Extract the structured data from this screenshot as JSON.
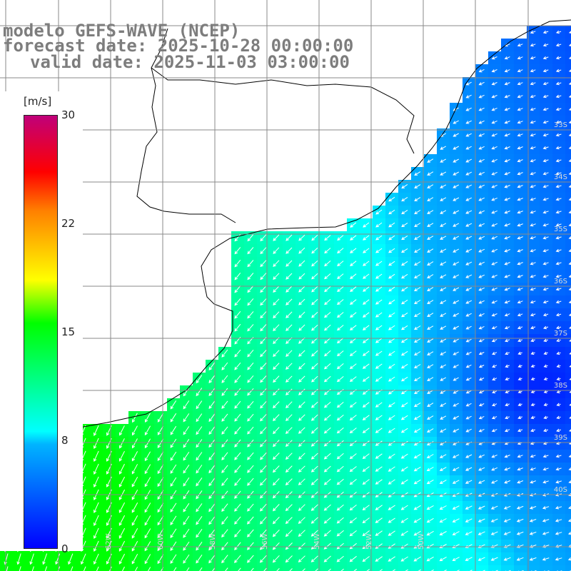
{
  "header": {
    "line1": "modelo GEFS-WAVE (NCEP)",
    "line2": "forecast date: 2025-10-28 00:00:00",
    "line3": "valid date: 2025-11-03 03:00:00"
  },
  "colorbar": {
    "unit": "[m/s]",
    "ticks": [
      "30",
      "22",
      "15",
      "8",
      "0"
    ],
    "tick_values": [
      30,
      22,
      15,
      8,
      0
    ],
    "range": [
      0,
      30
    ],
    "colors": [
      "#0000ff",
      "#00b4ff",
      "#00ffff",
      "#00ff00",
      "#ffff00",
      "#ff8000",
      "#ff0000",
      "#c0007a"
    ]
  },
  "map": {
    "lat_labels": [
      "33S",
      "34S",
      "35S",
      "36S",
      "37S",
      "38S",
      "39S",
      "40S"
    ],
    "lon_labels": [
      "62W",
      "60W",
      "58W",
      "56W",
      "54W",
      "52W",
      "50W"
    ],
    "field": "10 m wind speed with direction arrows",
    "land_color": "#ffffff",
    "grid_color": "#8a8a8a"
  }
}
